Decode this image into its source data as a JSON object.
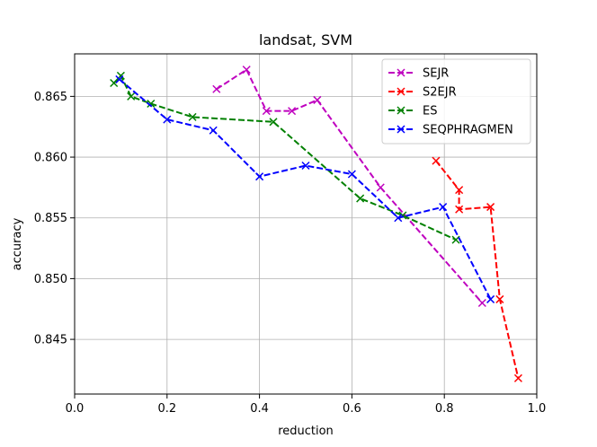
{
  "chart_data": {
    "type": "line",
    "title": "landsat, SVM",
    "xlabel": "reduction",
    "ylabel": "accuracy",
    "xlim": [
      0.0,
      1.0
    ],
    "ylim": [
      0.8405,
      0.8685
    ],
    "xticks": [
      0.0,
      0.2,
      0.4,
      0.6,
      0.8,
      1.0
    ],
    "xtick_labels": [
      "0.0",
      "0.2",
      "0.4",
      "0.6",
      "0.8",
      "1.0"
    ],
    "yticks": [
      0.845,
      0.85,
      0.855,
      0.86,
      0.865
    ],
    "ytick_labels": [
      "0.845",
      "0.850",
      "0.855",
      "0.860",
      "0.865"
    ],
    "grid": true,
    "legend_position": "top-right",
    "series": [
      {
        "name": "SEJR",
        "color": "#bf00bf",
        "x": [
          0.307,
          0.372,
          0.415,
          0.47,
          0.525,
          0.662,
          0.882
        ],
        "y": [
          0.8656,
          0.8672,
          0.8638,
          0.8638,
          0.8647,
          0.8575,
          0.848
        ]
      },
      {
        "name": "S2EJR",
        "color": "#ff0000",
        "x": [
          0.782,
          0.832,
          0.832,
          0.9,
          0.92,
          0.96
        ],
        "y": [
          0.8597,
          0.8573,
          0.8557,
          0.8559,
          0.8483,
          0.8418
        ]
      },
      {
        "name": "ES",
        "color": "#008000",
        "x": [
          0.085,
          0.1,
          0.122,
          0.165,
          0.255,
          0.43,
          0.618,
          0.71,
          0.825
        ],
        "y": [
          0.8661,
          0.8667,
          0.865,
          0.8644,
          0.8633,
          0.8629,
          0.8566,
          0.8552,
          0.8532
        ]
      },
      {
        "name": "SEQPHRAGMEN",
        "color": "#0000ff",
        "x": [
          0.097,
          0.2,
          0.3,
          0.4,
          0.5,
          0.6,
          0.7,
          0.797,
          0.9
        ],
        "y": [
          0.8664,
          0.8631,
          0.8622,
          0.8584,
          0.8593,
          0.8586,
          0.855,
          0.8559,
          0.8483
        ]
      }
    ]
  }
}
